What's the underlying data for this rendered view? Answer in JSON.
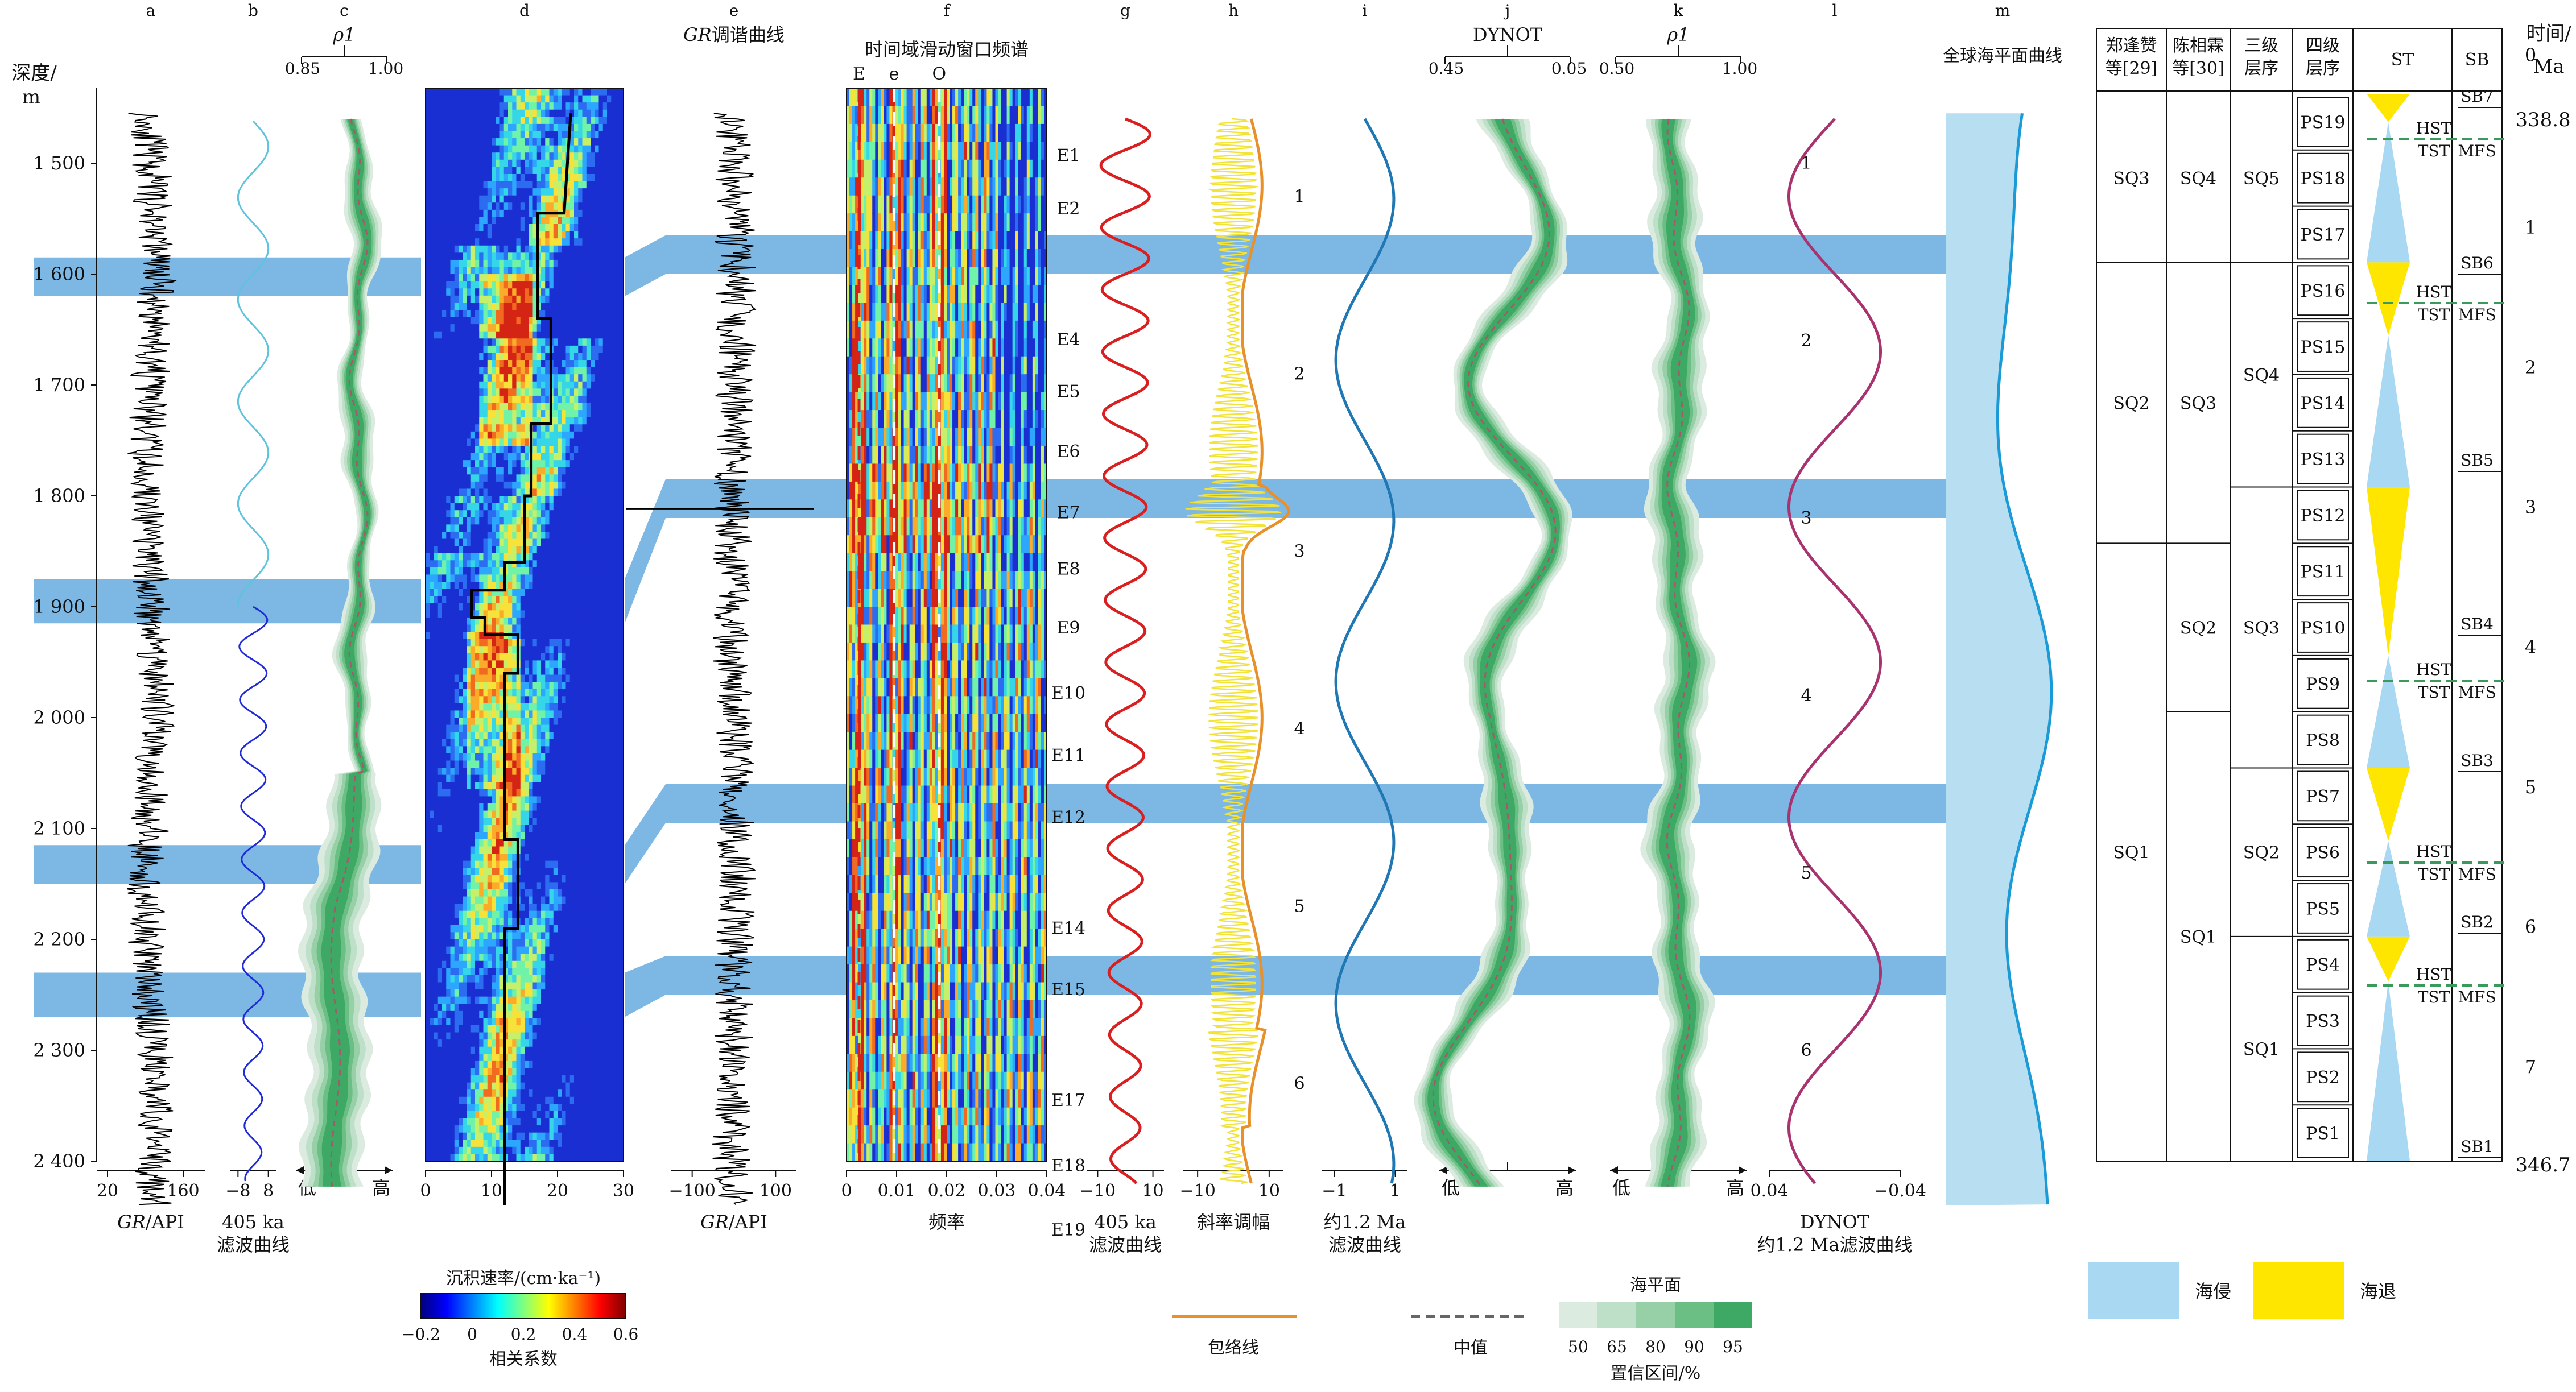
{
  "chart_data": {
    "type": "line",
    "depth_axis": {
      "label_line1": "深度/",
      "label_line2": "m",
      "range": [
        1455,
        2445
      ],
      "ticks": [
        {
          "value": 1500,
          "label": "1 500"
        },
        {
          "value": 1600,
          "label": "1 600"
        },
        {
          "value": 1700,
          "label": "1 700"
        },
        {
          "value": 1800,
          "label": "1 800"
        },
        {
          "value": 1900,
          "label": "1 900"
        },
        {
          "value": 2000,
          "label": "2 000"
        },
        {
          "value": 2100,
          "label": "2 100"
        },
        {
          "value": 2200,
          "label": "2 200"
        },
        {
          "value": 2300,
          "label": "2 300"
        },
        {
          "value": 2400,
          "label": "2 400"
        }
      ]
    },
    "highlight_bands": [
      {
        "left": [
          1585,
          1620
        ],
        "right": [
          1565,
          1600
        ]
      },
      {
        "left": [
          1875,
          1915
        ],
        "right": [
          1785,
          1820
        ]
      },
      {
        "left": [
          2115,
          2150
        ],
        "right": [
          2060,
          2095
        ]
      },
      {
        "left": [
          2230,
          2270
        ],
        "right": [
          2215,
          2250
        ]
      }
    ],
    "panels": [
      {
        "letter": "a",
        "title": "",
        "xlabel": "GR/API",
        "xlabel2": "",
        "xrange": [
          0,
          200
        ],
        "ticks": [
          {
            "value": 20,
            "label": "20"
          },
          {
            "value": 160,
            "label": "160"
          }
        ]
      },
      {
        "letter": "b",
        "title": "",
        "xlabel": "405 ka",
        "xlabel2": "滤波曲线",
        "xrange": [
          -12,
          12
        ],
        "ticks": [
          {
            "value": -8,
            "label": "−8"
          },
          {
            "value": 8,
            "label": "8"
          }
        ]
      },
      {
        "letter": "c",
        "title": "ρ1",
        "xlabel": "低",
        "xlabel2": "高",
        "xrange": [
          0.85,
          1.0
        ],
        "ticks": [
          {
            "value": 0.85,
            "label": "0.85"
          },
          {
            "value": 1.0,
            "label": "1.00"
          }
        ]
      },
      {
        "letter": "d",
        "title": "",
        "xlabel": "沉积速率/(cm·ka⁻¹)",
        "xlabel2": "",
        "xrange": [
          0,
          30
        ],
        "ticks": [
          {
            "value": 0,
            "label": "0"
          },
          {
            "value": 10,
            "label": "10"
          },
          {
            "value": 20,
            "label": "20"
          },
          {
            "value": 30,
            "label": "30"
          }
        ]
      },
      {
        "letter": "e",
        "title": "GR调谐曲线",
        "xlabel": "GR/API",
        "xlabel2": "",
        "xrange": [
          -150,
          150
        ],
        "ticks": [
          {
            "value": -100,
            "label": "−100"
          },
          {
            "value": 100,
            "label": "100"
          }
        ]
      },
      {
        "letter": "f",
        "title": "时间域滑动窗口频谱",
        "xlabel": "频率",
        "xlabel2": "",
        "xrange": [
          0,
          0.04
        ],
        "ticks": [
          {
            "value": 0,
            "label": "0"
          },
          {
            "value": 0.01,
            "label": "0.01"
          },
          {
            "value": 0.02,
            "label": "0.02"
          },
          {
            "value": 0.03,
            "label": "0.03"
          },
          {
            "value": 0.04,
            "label": "0.04"
          }
        ],
        "markers": [
          {
            "label": "E",
            "value": 0.0025
          },
          {
            "label": "e",
            "value": 0.0095
          },
          {
            "label": "O",
            "value": 0.0185
          }
        ]
      },
      {
        "letter": "g",
        "title": "",
        "xlabel": "405 ka",
        "xlabel2": "滤波曲线",
        "xrange": [
          -14,
          14
        ],
        "ticks": [
          {
            "value": -10,
            "label": "−10"
          },
          {
            "value": 10,
            "label": "10"
          }
        ]
      },
      {
        "letter": "h",
        "title": "",
        "xlabel": "斜率调幅",
        "xlabel2": "",
        "xrange": [
          -14,
          14
        ],
        "ticks": [
          {
            "value": -10,
            "label": "−10"
          },
          {
            "value": 10,
            "label": "10"
          }
        ]
      },
      {
        "letter": "i",
        "title": "",
        "xlabel": "约1.2 Ma",
        "xlabel2": "滤波曲线",
        "xrange": [
          -1.4,
          1.4
        ],
        "ticks": [
          {
            "value": -1,
            "label": "−1"
          },
          {
            "value": 1,
            "label": "1"
          }
        ]
      },
      {
        "letter": "j",
        "title": "DYNOT",
        "xlabel": "低",
        "xlabel2": "高",
        "xrange": [
          0.45,
          0.05
        ],
        "ticks": [
          {
            "value": 0.45,
            "label": "0.45"
          },
          {
            "value": 0.05,
            "label": "0.05"
          }
        ]
      },
      {
        "letter": "k",
        "title": "ρ1",
        "xlabel": "低",
        "xlabel2": "高",
        "xrange": [
          0.5,
          1.0
        ],
        "ticks": [
          {
            "value": 0.5,
            "label": "0.50"
          },
          {
            "value": 1.0,
            "label": "1.00"
          }
        ]
      },
      {
        "letter": "l",
        "title": "",
        "xlabel": "DYNOT",
        "xlabel2": "约1.2 Ma滤波曲线",
        "xrange": [
          0.04,
          -0.04
        ],
        "ticks": [
          {
            "value": 0.04,
            "label": "0.04"
          },
          {
            "value": -0.04,
            "label": "−0.04"
          }
        ]
      },
      {
        "letter": "m",
        "title": "全球海平面曲线",
        "xlabel": "",
        "xlabel2": "",
        "xrange": [
          0,
          1
        ],
        "ticks": []
      }
    ],
    "cycle_labels_E": [
      {
        "label": "E1",
        "depth": 1493
      },
      {
        "label": "E2",
        "depth": 1541
      },
      {
        "label": "E4",
        "depth": 1659
      },
      {
        "label": "E5",
        "depth": 1706
      },
      {
        "label": "E6",
        "depth": 1760
      },
      {
        "label": "E7",
        "depth": 1815
      },
      {
        "label": "E8",
        "depth": 1866
      },
      {
        "label": "E9",
        "depth": 1919
      },
      {
        "label": "E10",
        "depth": 1978
      },
      {
        "label": "E11",
        "depth": 2034
      },
      {
        "label": "E12",
        "depth": 2090
      },
      {
        "label": "E14",
        "depth": 2190
      },
      {
        "label": "E15",
        "depth": 2245
      },
      {
        "label": "E17",
        "depth": 2345
      },
      {
        "label": "E18",
        "depth": 2404
      },
      {
        "label": "E19",
        "depth": 2462
      }
    ],
    "cycle_labels_i": [
      "1",
      "2",
      "3",
      "4",
      "5",
      "6"
    ],
    "cycle_labels_l": [
      "1",
      "2",
      "3",
      "4",
      "5",
      "6"
    ],
    "sequence_table": {
      "headers": [
        "郑逢赞等[29]",
        "陈相霖等[30]",
        "三级层序",
        "四级层序",
        "ST",
        "SB"
      ],
      "time_axis": {
        "label_line1": "时间/",
        "label_line2": "Ma",
        "ticks": [
          "0",
          "1",
          "2",
          "3",
          "4",
          "5",
          "6",
          "7"
        ],
        "top_age": "338.8",
        "bottom_age": "346.7"
      },
      "col_zheng": [
        "SQ3",
        "SQ2",
        "SQ1"
      ],
      "col_chen": [
        "SQ4",
        "SQ3",
        "SQ2",
        "SQ1"
      ],
      "col_third": [
        "SQ5",
        "SQ4",
        "SQ3",
        "SQ2",
        "SQ1"
      ],
      "col_fourth": [
        "PS19",
        "PS18",
        "PS17",
        "PS16",
        "PS15",
        "PS14",
        "PS13",
        "PS12",
        "PS11",
        "PS10",
        "PS9",
        "PS8",
        "PS7",
        "PS6",
        "PS5",
        "PS4",
        "PS3",
        "PS2",
        "PS1"
      ],
      "sb_labels": [
        "SB7",
        "SB6",
        "SB5",
        "SB4",
        "SB3",
        "SB2",
        "SB1"
      ],
      "mfs_label": "MFS",
      "hst_label": "HST",
      "tst_label": "TST"
    },
    "legends": {
      "colorbar": {
        "title": "沉积速率/(cm·ka⁻¹)",
        "caption": "相关系数",
        "ticks": [
          "−0.2",
          "0",
          "0.2",
          "0.4",
          "0.6"
        ]
      },
      "envelope": "包络线",
      "median": "中值",
      "sea_level_title": "海平面",
      "ci_levels": [
        "50",
        "65",
        "80",
        "90",
        "95"
      ],
      "ci_caption": "置信区间/%",
      "transgression": "海侵",
      "regression": "海退"
    },
    "colors": {
      "band": "#7db7e4",
      "gr": "#000000",
      "filter405_b_top": "#5ec3dc",
      "filter405_b_bottom": "#1f2bd8",
      "filter405_g": "#d91f1f",
      "obliquity": "#f2e33a",
      "envelope": "#e8902a",
      "filter12": "#1f77b4",
      "filter12_l": "#a8336e",
      "median": "#a45a6c",
      "sea_level_fill": "#b8def2",
      "sea_level_line": "#1a9ad6",
      "ci": [
        "#dcebe0",
        "#bfe0c8",
        "#97d0a6",
        "#6cbf84",
        "#3da964"
      ],
      "transgression": "#a9d8f2",
      "regression": "#ffe600",
      "dash_green": "#3a9a5b"
    }
  }
}
